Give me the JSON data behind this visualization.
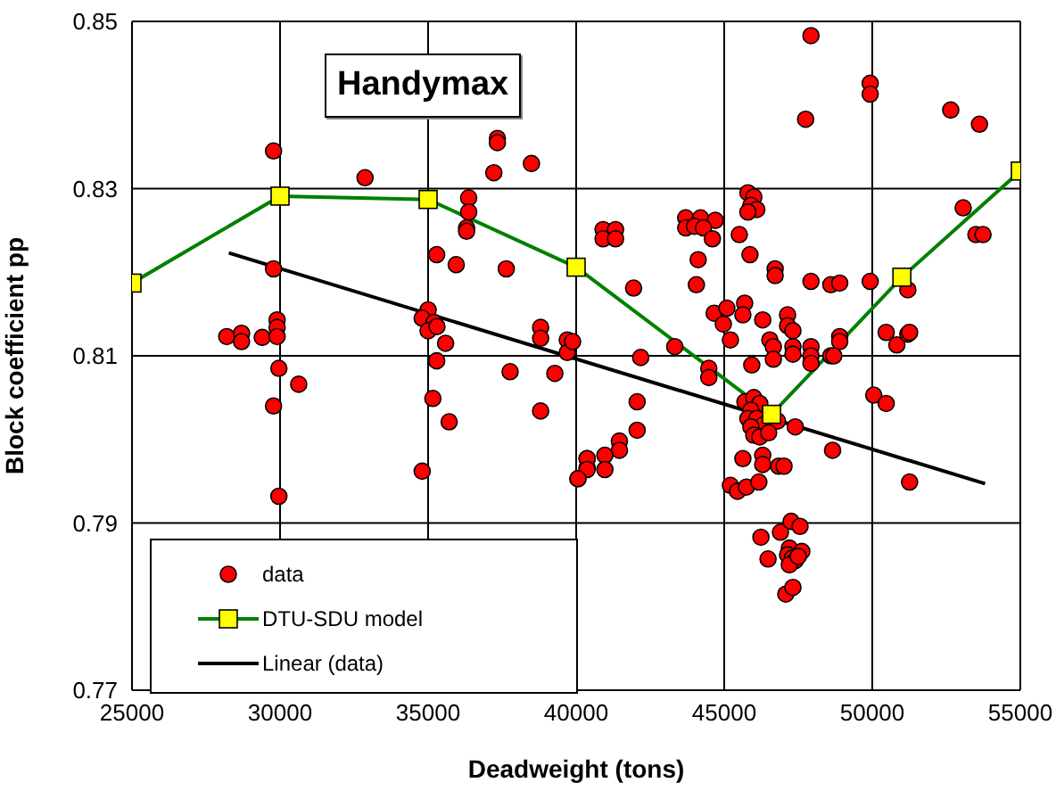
{
  "chart_data": {
    "type": "scatter",
    "title": "Handymax",
    "xlabel": "Deadweight (tons)",
    "ylabel": "Block coefficient pp",
    "xlim": [
      25000,
      55000
    ],
    "xticks": [
      25000,
      30000,
      35000,
      40000,
      45000,
      50000,
      55000
    ],
    "ylim": [
      0.77,
      0.85
    ],
    "yticks": [
      0.77,
      0.79,
      0.81,
      0.83,
      0.85
    ],
    "grid": true,
    "legend": "bottom left",
    "series": [
      {
        "name": "data",
        "color": "#ff0000",
        "marker": "circle",
        "x": [
          29780,
          32870,
          37340,
          37340,
          37220,
          38490,
          36370,
          36370,
          36300,
          36300,
          35290,
          35950,
          37640,
          29780,
          35000,
          34800,
          35200,
          35000,
          35300,
          35590,
          28200,
          28700,
          28700,
          29400,
          29900,
          29900,
          29900,
          38800,
          38800,
          39700,
          39700,
          35290,
          29960,
          30630,
          37770,
          39280,
          35160,
          29780,
          38800,
          35710,
          34800,
          29960,
          40060,
          40370,
          40370,
          47930,
          49930,
          49930,
          47750,
          52650,
          53620,
          45800,
          46000,
          45900,
          46100,
          45800,
          43700,
          44200,
          44700,
          43700,
          44000,
          44300,
          44600,
          40910,
          40910,
          41330,
          41330,
          45510,
          45870,
          44120,
          53070,
          53500,
          53740,
          46720,
          46720,
          47930,
          48600,
          48900,
          49930,
          51200,
          41940,
          44060,
          45690,
          44660,
          44970,
          45090,
          45630,
          46300,
          47140,
          47140,
          47320,
          45210,
          46540,
          46660,
          46660,
          47320,
          47320,
          47930,
          47930,
          47930,
          48900,
          48900,
          48600,
          48700,
          50470,
          50830,
          51200,
          51260,
          39880,
          42180,
          43330,
          44480,
          44480,
          45930,
          42060,
          42060,
          41460,
          41460,
          40970,
          40370,
          40370,
          40970,
          40060,
          45700,
          46000,
          46200,
          45900,
          45800,
          46100,
          46300,
          45900,
          46000,
          46200,
          46800,
          47400,
          46500,
          50050,
          50470,
          48660,
          51260,
          45630,
          46300,
          46300,
          46840,
          47020,
          45210,
          45450,
          45750,
          46170,
          46240,
          46900,
          47260,
          47560,
          46480,
          47200,
          47620,
          47140,
          47300,
          47400,
          47200,
          47500,
          47080,
          47320
        ],
        "values": [
          0.8345,
          0.8313,
          0.836,
          0.8355,
          0.8319,
          0.833,
          0.8289,
          0.8272,
          0.8253,
          0.8249,
          0.8221,
          0.8209,
          0.8204,
          0.8204,
          0.8155,
          0.8145,
          0.814,
          0.813,
          0.8135,
          0.8115,
          0.8123,
          0.8127,
          0.8117,
          0.8122,
          0.8143,
          0.8134,
          0.8123,
          0.8134,
          0.8121,
          0.8119,
          0.8104,
          0.8094,
          0.8085,
          0.8066,
          0.8081,
          0.8079,
          0.8049,
          0.804,
          0.8034,
          0.8021,
          0.7962,
          0.7932,
          0.7953,
          0.7966,
          0.7977,
          0.8483,
          0.8426,
          0.8413,
          0.8383,
          0.8394,
          0.8377,
          0.8295,
          0.829,
          0.828,
          0.8275,
          0.8272,
          0.8265,
          0.8265,
          0.8262,
          0.8253,
          0.8255,
          0.8253,
          0.824,
          0.8251,
          0.824,
          0.8251,
          0.824,
          0.8245,
          0.8221,
          0.8215,
          0.8277,
          0.8245,
          0.8245,
          0.8204,
          0.8196,
          0.8189,
          0.8185,
          0.8187,
          0.8189,
          0.8179,
          0.8181,
          0.8185,
          0.8163,
          0.8151,
          0.8138,
          0.8157,
          0.8149,
          0.8143,
          0.8149,
          0.8136,
          0.813,
          0.8119,
          0.8119,
          0.8111,
          0.8096,
          0.8111,
          0.8102,
          0.8111,
          0.81,
          0.8091,
          0.8123,
          0.8117,
          0.81,
          0.81,
          0.8128,
          0.8113,
          0.8126,
          0.8128,
          0.8117,
          0.8098,
          0.8111,
          0.8085,
          0.8074,
          0.8089,
          0.8045,
          0.8011,
          0.7998,
          0.7987,
          0.7981,
          0.7977,
          0.7964,
          0.7964,
          0.7953,
          0.8045,
          0.805,
          0.8043,
          0.8035,
          0.8025,
          0.8025,
          0.8017,
          0.8015,
          0.8005,
          0.8003,
          0.8022,
          0.8015,
          0.8008,
          0.8053,
          0.8043,
          0.7987,
          0.7949,
          0.7977,
          0.7981,
          0.797,
          0.7968,
          0.7968,
          0.7945,
          0.7938,
          0.7943,
          0.7949,
          0.7883,
          0.7889,
          0.7902,
          0.7896,
          0.7857,
          0.787,
          0.7866,
          0.7862,
          0.7858,
          0.7855,
          0.785,
          0.786,
          0.7815,
          0.7823
        ]
      },
      {
        "type": "line",
        "name": "DTU-SDU model",
        "color": "#008000",
        "marker": "square",
        "colors": [
          "#ffff00",
          "#ffff00",
          "#ffff00",
          "#ffff00",
          "#ffff00",
          "#ffff00",
          "#ffff00"
        ],
        "x": [
          25000,
          30000,
          35000,
          40000,
          46600,
          51000,
          55000
        ],
        "values": [
          0.8187,
          0.8291,
          0.8287,
          0.8206,
          0.803,
          0.8194,
          0.8321
        ]
      },
      {
        "type": "line",
        "name": "Linear (data)",
        "color": "#000000",
        "marker": "none",
        "x": [
          28270,
          53810
        ],
        "values": [
          0.8223,
          0.7947
        ]
      }
    ]
  }
}
